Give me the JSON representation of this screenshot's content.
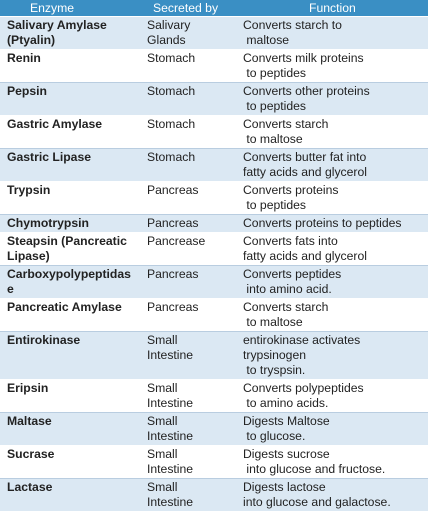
{
  "header": {
    "enzyme": "Enzyme",
    "secreted_by": "Secreted by",
    "function": "Function"
  },
  "rows": [
    {
      "enzyme": [
        "Salivary Amylase",
        "(Ptyalin)"
      ],
      "secreted": [
        "Salivary",
        "Glands"
      ],
      "function": [
        "Converts starch to",
        " maltose"
      ]
    },
    {
      "enzyme": [
        "Renin"
      ],
      "secreted": [
        "Stomach"
      ],
      "function": [
        "Converts milk proteins",
        " to peptides"
      ]
    },
    {
      "enzyme": [
        "Pepsin"
      ],
      "secreted": [
        "Stomach"
      ],
      "function": [
        "Converts other proteins",
        " to peptides"
      ]
    },
    {
      "enzyme": [
        "Gastric Amylase"
      ],
      "secreted": [
        "Stomach"
      ],
      "function": [
        "Converts starch",
        " to maltose"
      ]
    },
    {
      "enzyme": [
        "Gastric Lipase"
      ],
      "secreted": [
        "Stomach"
      ],
      "function": [
        "Converts butter fat into",
        "fatty acids and glycerol"
      ]
    },
    {
      "enzyme": [
        "Trypsin"
      ],
      "secreted": [
        "Pancreas"
      ],
      "function": [
        "Converts proteins",
        " to peptides"
      ]
    },
    {
      "enzyme": [
        "Chymotrypsin"
      ],
      "secreted": [
        "Pancreas"
      ],
      "function": [
        "Converts proteins to peptides"
      ]
    },
    {
      "enzyme": [
        "Steapsin (Pancreatic",
        "Lipase)"
      ],
      "secreted": [
        "Pancrease"
      ],
      "function": [
        "Converts fats into",
        "fatty acids and glycerol"
      ]
    },
    {
      "enzyme": [
        "Carboxypolypeptidas",
        "e"
      ],
      "secreted": [
        "Pancreas"
      ],
      "function": [
        "Converts peptides",
        " into amino acid."
      ]
    },
    {
      "enzyme": [
        "Pancreatic Amylase"
      ],
      "secreted": [
        "Pancreas"
      ],
      "function": [
        "Converts starch",
        " to maltose"
      ]
    },
    {
      "enzyme": [
        "Entirokinase"
      ],
      "secreted": [
        "Small",
        "Intestine"
      ],
      "function": [
        "entirokinase activates",
        "trypsinogen",
        " to tryspsin."
      ]
    },
    {
      "enzyme": [
        "Eripsin"
      ],
      "secreted": [
        "Small",
        "Intestine"
      ],
      "function": [
        "Converts polypeptides",
        " to amino acids."
      ]
    },
    {
      "enzyme": [
        "Maltase"
      ],
      "secreted": [
        "Small",
        "Intestine"
      ],
      "function": [
        "Digests Maltose",
        " to glucose."
      ]
    },
    {
      "enzyme": [
        "Sucrase"
      ],
      "secreted": [
        "Small",
        "Intestine"
      ],
      "function": [
        "Digests sucrose",
        " into glucose and fructose."
      ]
    },
    {
      "enzyme": [
        "Lactase"
      ],
      "secreted": [
        "Small",
        "Intestine"
      ],
      "function": [
        "Digests lactose",
        "into glucose and galactose."
      ]
    }
  ]
}
